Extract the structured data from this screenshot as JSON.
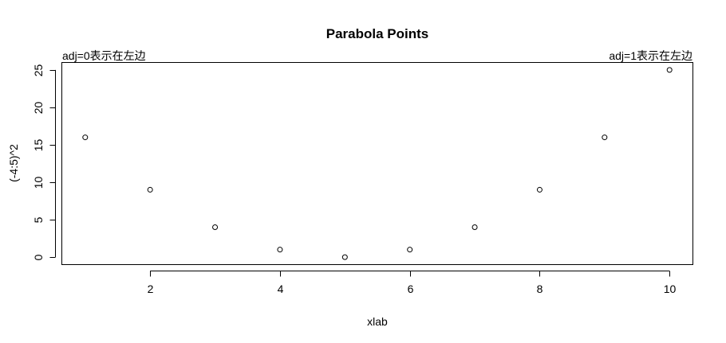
{
  "chart_data": {
    "type": "scatter",
    "title": "Parabola Points",
    "xlabel": "xlab",
    "ylabel": "(-4:5)^2",
    "x": [
      1,
      2,
      3,
      4,
      5,
      6,
      7,
      8,
      9,
      10
    ],
    "y": [
      16,
      9,
      4,
      1,
      0,
      1,
      4,
      9,
      16,
      25
    ],
    "xlim": [
      0.64,
      10.36
    ],
    "ylim": [
      -1,
      26
    ],
    "xticks": [
      2,
      4,
      6,
      8,
      10
    ],
    "yticks": [
      0,
      5,
      10,
      15,
      20,
      25
    ],
    "grid": false,
    "annotations": {
      "left": "adj=0表示在左边",
      "right": "adj=1表示在左边"
    }
  }
}
